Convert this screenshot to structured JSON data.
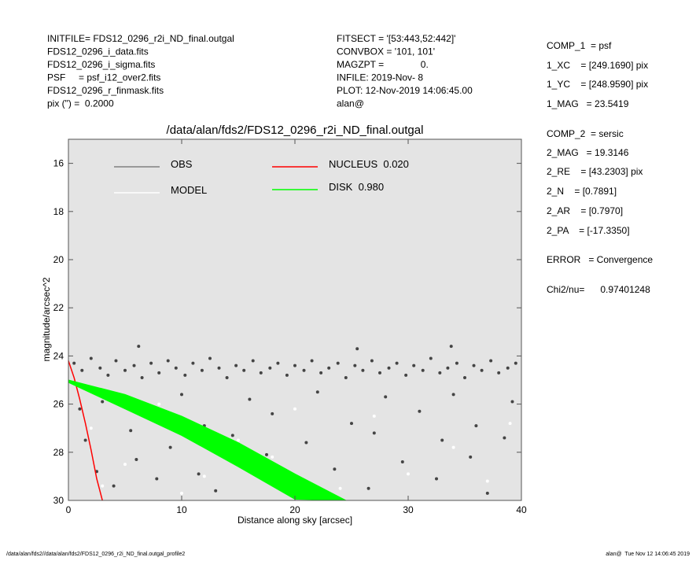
{
  "header": {
    "left": [
      "INITFILE= FDS12_0296_r2i_ND_final.outgal",
      "FDS12_0296_i_data.fits",
      "FDS12_0296_i_sigma.fits",
      "PSF     = psf_i12_over2.fits",
      "FDS12_0296_r_finmask.fits",
      "pix (\") =  0.2000"
    ],
    "middle": [
      "FITSECT = '[53:443,52:442]'",
      "CONVBOX = '101, 101'",
      "MAGZPT =              0.",
      "INFILE: 2019-Nov- 8",
      "PLOT: 12-Nov-2019 14:06:45.00",
      "alan@"
    ],
    "right": [
      "COMP_1  = psf",
      "1_XC    = [249.1690] pix",
      "1_YC    = [248.9590] pix",
      "1_MAG   = 23.5419",
      "COMP_2  = sersic",
      "2_MAG   = 19.3146",
      "2_RE    = [43.2303] pix",
      "2_N    = [0.7891]",
      "2_AR    = [0.7970]",
      "2_PA    = [-17.3350]",
      "ERROR   = Convergence",
      "Chi2/nu=      0.97401248"
    ]
  },
  "footer": {
    "left": "/data/alan/fds2//data/alan/fds2/FDS12_0296_r2i_ND_final.outgal_profile2",
    "right": "alan@  Tue Nov 12 14:06:45 2019"
  },
  "chart_data": {
    "type": "scatter",
    "title": "/data/alan/fds2/FDS12_0296_r2i_ND_final.outgal",
    "x_label": "Distance along sky [arcsec]",
    "y_label": "magnitude/arcsec^2",
    "xlim": [
      0,
      40
    ],
    "xticks": [
      0,
      10,
      20,
      30,
      40
    ],
    "ylim": [
      15,
      30
    ],
    "yticks": [
      16,
      18,
      20,
      22,
      24,
      26,
      28,
      30
    ],
    "y_inverted": true,
    "background": "#e4e4e4",
    "series": [
      {
        "name": "OBS",
        "kind": "scatter",
        "color": "#444444",
        "legend_color": "#808080",
        "x": [
          0.5,
          1.2,
          2,
          2.8,
          3.5,
          4.2,
          5,
          5.8,
          6.5,
          7.3,
          8,
          8.8,
          9.5,
          10.3,
          11,
          11.8,
          12.5,
          13.3,
          14,
          14.8,
          15.5,
          16.3,
          17,
          17.8,
          18.5,
          19.3,
          20,
          20.8,
          21.5,
          22.3,
          23,
          23.8,
          24.5,
          25.3,
          26,
          26.8,
          27.5,
          28.3,
          29,
          29.8,
          30.5,
          31.3,
          32,
          32.8,
          33.5,
          34.3,
          35,
          35.8,
          36.5,
          37.3,
          38,
          38.8,
          39.5,
          1,
          1.5,
          2.5,
          3,
          4,
          5.5,
          6,
          7,
          7.8,
          9,
          10,
          11.5,
          12,
          13,
          14.5,
          16,
          17.5,
          18,
          19,
          21,
          22,
          23.5,
          25,
          26.5,
          27,
          28,
          29.5,
          31,
          32.5,
          33,
          34,
          35.5,
          36,
          37,
          38.5,
          39.2,
          33.8,
          6.2,
          25.5
        ],
        "values": [
          24.3,
          24.6,
          24.1,
          24.5,
          24.8,
          24.2,
          24.6,
          24.4,
          24.9,
          24.3,
          24.7,
          24.2,
          24.5,
          24.8,
          24.3,
          24.6,
          24.1,
          24.5,
          24.9,
          24.4,
          24.6,
          24.2,
          24.7,
          24.5,
          24.3,
          24.8,
          24.4,
          24.6,
          24.2,
          24.7,
          24.5,
          24.3,
          24.9,
          24.4,
          24.6,
          24.2,
          24.7,
          24.5,
          24.3,
          24.8,
          24.4,
          24.6,
          24.1,
          24.7,
          24.5,
          24.3,
          24.9,
          24.4,
          24.6,
          24.2,
          24.7,
          24.5,
          24.3,
          26.2,
          27.5,
          28.8,
          25.9,
          29.4,
          27.1,
          28.3,
          26.5,
          29.1,
          27.8,
          25.6,
          28.9,
          26.9,
          29.6,
          27.3,
          25.8,
          28.1,
          26.4,
          29.3,
          27.6,
          25.5,
          28.7,
          26.8,
          29.5,
          27.2,
          25.7,
          28.4,
          26.3,
          29.1,
          27.5,
          25.6,
          28.2,
          26.9,
          29.7,
          27.4,
          25.9,
          23.6,
          23.6,
          23.7
        ]
      },
      {
        "name": "MODEL",
        "kind": "scatter",
        "color": "#ffffff",
        "legend_color": "#ffffff",
        "x": [
          2,
          5,
          8,
          12,
          15,
          18,
          24,
          27,
          30,
          34,
          37,
          39,
          20,
          10,
          3
        ],
        "values": [
          27,
          28.5,
          26,
          29,
          27.5,
          28.2,
          29.5,
          26.5,
          28.9,
          27.8,
          29.2,
          26.8,
          26.2,
          29.7,
          29.4
        ]
      },
      {
        "name": "NUCLEUS  0.020",
        "kind": "line",
        "color": "#ff0000",
        "legend_color": "#ff0000",
        "x": [
          0,
          0.5,
          1,
          1.5,
          2,
          2.5,
          3
        ],
        "values": [
          24.2,
          24.9,
          25.8,
          26.8,
          27.9,
          29.1,
          30
        ]
      },
      {
        "name": "DISK  0.980",
        "kind": "band",
        "color": "#00ff00",
        "legend_color": "#00ff00",
        "x": [
          0,
          5,
          10,
          15,
          20,
          24.5
        ],
        "values": [
          25,
          25.6,
          26.5,
          27.6,
          28.9,
          30
        ],
        "lower": [
          25.1,
          26.2,
          27.3,
          28.6,
          29.95,
          30
        ]
      }
    ]
  }
}
